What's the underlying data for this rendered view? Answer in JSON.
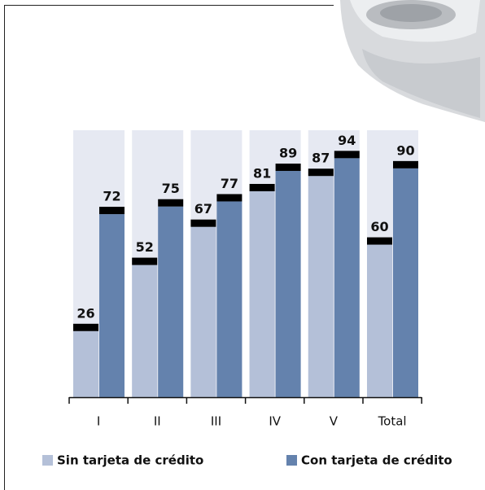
{
  "chart_data": {
    "type": "bar",
    "categories": [
      "I",
      "II",
      "III",
      "IV",
      "V",
      "Total"
    ],
    "series": [
      {
        "name": "Sin tarjeta de crédito",
        "color": "#b4c0d8",
        "values": [
          26,
          52,
          67,
          81,
          87,
          60
        ]
      },
      {
        "name": "Con tarjeta de crédito",
        "color": "#6482ad",
        "values": [
          72,
          75,
          77,
          89,
          94,
          90
        ]
      }
    ],
    "ylim": [
      0,
      105
    ]
  }
}
